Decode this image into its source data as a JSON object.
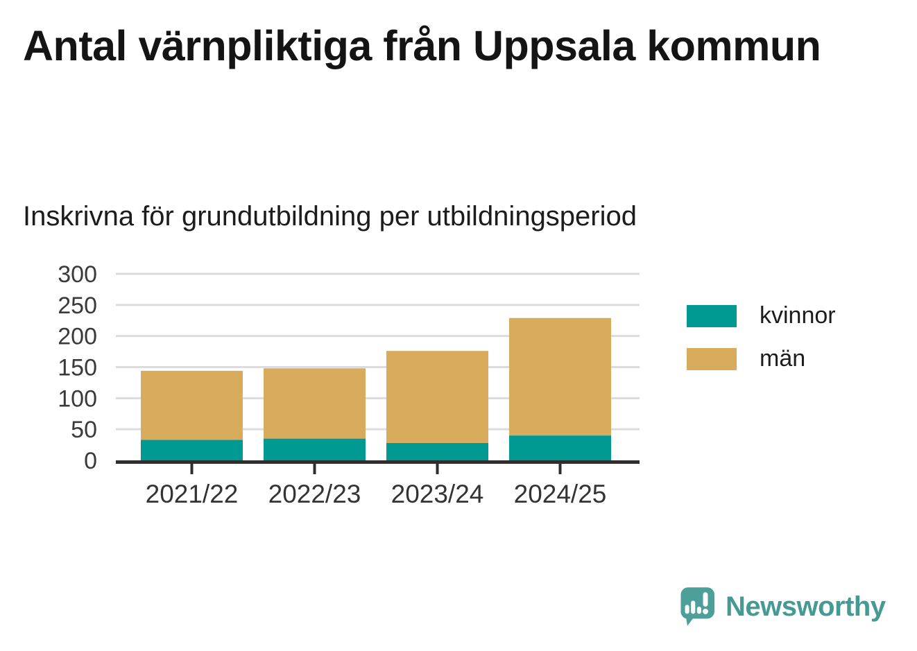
{
  "header": {
    "title": "Antal värnpliktiga från Uppsala kommun",
    "subtitle": "Inskrivna för grundutbildning per utbildningsperiod"
  },
  "chart_data": {
    "type": "bar",
    "stacked": true,
    "title": "Antal värnpliktiga från Uppsala kommun",
    "subtitle": "Inskrivna för grundutbildning per utbildningsperiod",
    "categories": [
      "2021/22",
      "2022/23",
      "2023/24",
      "2024/25"
    ],
    "series": [
      {
        "name": "kvinnor",
        "color": "#009a93",
        "values": [
          33,
          35,
          28,
          40
        ]
      },
      {
        "name": "män",
        "color": "#d9ab5d",
        "values": [
          111,
          113,
          148,
          189
        ]
      }
    ],
    "totals": [
      144,
      148,
      176,
      229
    ],
    "ylim": [
      0,
      300
    ],
    "yticks": [
      0,
      50,
      100,
      150,
      200,
      250,
      300
    ],
    "grid": true,
    "legend_position": "right",
    "gridline_color": "#dcdcdc",
    "axis_color": "#2e2e2e",
    "tick_label_color": "#3a3a3a"
  },
  "footer": {
    "brand": "Newsworthy",
    "brand_color": "#459a94",
    "logo_icon": "speech-bubble-bar-chart-icon"
  }
}
